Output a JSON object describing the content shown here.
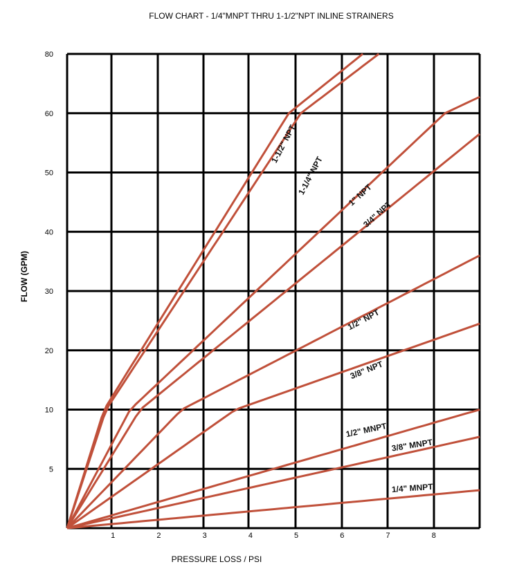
{
  "chart_data": {
    "type": "line",
    "title": "FLOW CHART - 1/4\"MNPT THRU 1-1/2\"NPT INLINE STRAINERS",
    "xlabel": "PRESSURE LOSS / PSI",
    "ylabel": "FLOW (GPM)",
    "xlim": [
      0,
      9
    ],
    "x_ticks": [
      1,
      2,
      3,
      4,
      5,
      6,
      7,
      8
    ],
    "y_ticks": [
      5,
      10,
      20,
      30,
      40,
      50,
      60,
      80
    ],
    "y_ticks_note": "y axis is nonlinear: 0,5,10,20,30,40,50,60,80 evenly spaced",
    "grid": true,
    "line_color": "#c0503a",
    "series": [
      {
        "name": "1-1/2\" NPT",
        "points": [
          [
            0,
            0
          ],
          [
            6.45,
            80
          ]
        ]
      },
      {
        "name": "1-1/4\" NPT",
        "points": [
          [
            0,
            0
          ],
          [
            6.8,
            80
          ]
        ]
      },
      {
        "name": "1\" NPT",
        "points": [
          [
            0,
            0
          ],
          [
            9,
            65.5
          ]
        ]
      },
      {
        "name": "3/4\" NPT",
        "points": [
          [
            0,
            0
          ],
          [
            9,
            56.5
          ]
        ]
      },
      {
        "name": "1/2\" NPT",
        "points": [
          [
            0,
            0
          ],
          [
            9,
            36
          ]
        ]
      },
      {
        "name": "3/8\" NPT",
        "points": [
          [
            0,
            0
          ],
          [
            9,
            24.5
          ]
        ]
      },
      {
        "name": "1/2\" MNPT",
        "points": [
          [
            0,
            0
          ],
          [
            9,
            10
          ]
        ]
      },
      {
        "name": "3/8\" MNPT",
        "points": [
          [
            0,
            0
          ],
          [
            9,
            7.7
          ]
        ]
      },
      {
        "name": "1/4\" MNPT",
        "points": [
          [
            0,
            0
          ],
          [
            9,
            3.2
          ]
        ]
      }
    ]
  }
}
